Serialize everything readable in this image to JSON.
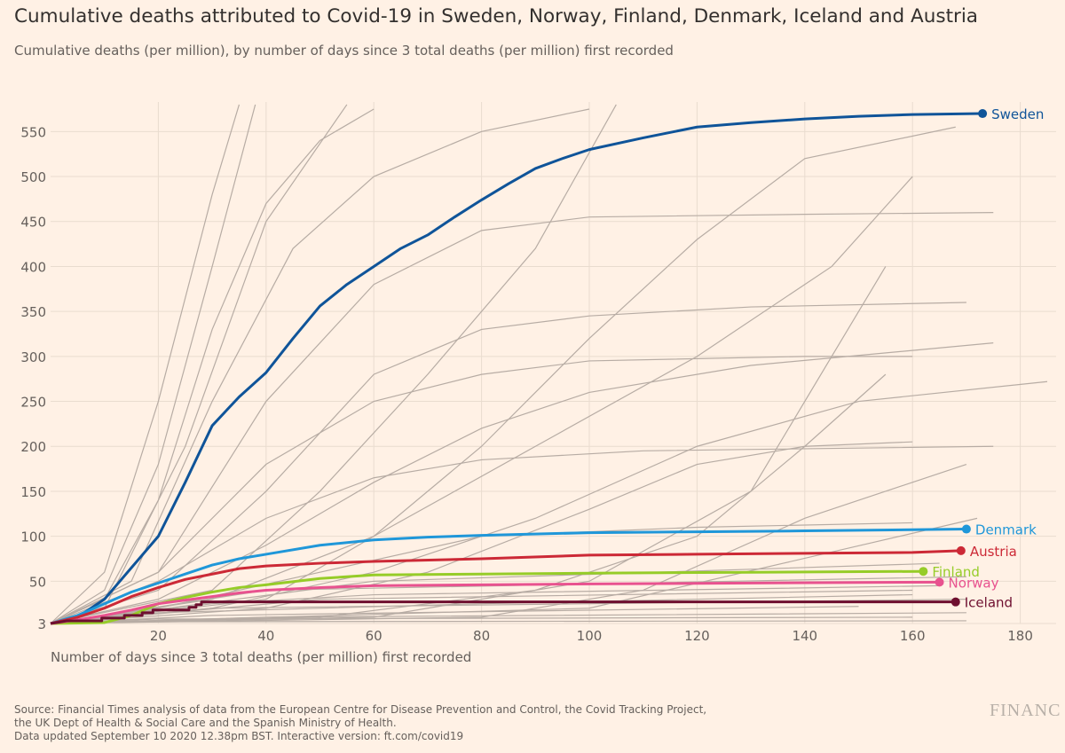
{
  "title": "Cumulative deaths attributed to Covid-19 in Sweden, Norway, Finland, Denmark, Iceland and Austria",
  "subtitle": "Cumulative deaths (per million), by number of days since 3 total deaths (per million) first recorded",
  "source_lines": [
    "Source: Financial Times analysis of data from the European Centre for Disease Prevention and Control, the Covid Tracking Project,",
    "the UK Dept of Health & Social Care and the Spanish Ministry of Health.",
    "Data updated September 10 2020 12.38pm BST. Interactive version: ft.com/covid19"
  ],
  "logo_text": "FINANC",
  "chart_data": {
    "type": "line",
    "title": "Cumulative deaths attributed to Covid-19 in Sweden, Norway, Finland, Denmark, Iceland and Austria",
    "xlabel": "Number of days since 3 total deaths (per million) first recorded",
    "ylabel": "",
    "xlim": [
      0,
      188
    ],
    "ylim": [
      3,
      580
    ],
    "x_ticks": [
      20,
      40,
      60,
      80,
      100,
      120,
      140,
      160,
      180
    ],
    "y_ticks": [
      3,
      50,
      100,
      150,
      200,
      250,
      300,
      350,
      400,
      450,
      500,
      550
    ],
    "grid": true,
    "legend": "end-of-line labels",
    "series": [
      {
        "name": "Sweden",
        "color": "#0f5499",
        "points": [
          [
            0,
            3
          ],
          [
            5,
            10
          ],
          [
            10,
            30
          ],
          [
            15,
            65
          ],
          [
            20,
            100
          ],
          [
            25,
            160
          ],
          [
            30,
            223
          ],
          [
            35,
            255
          ],
          [
            40,
            282
          ],
          [
            45,
            320
          ],
          [
            50,
            356
          ],
          [
            55,
            380
          ],
          [
            60,
            400
          ],
          [
            65,
            420
          ],
          [
            70,
            435
          ],
          [
            75,
            455
          ],
          [
            80,
            474
          ],
          [
            85,
            492
          ],
          [
            90,
            509
          ],
          [
            95,
            520
          ],
          [
            100,
            530
          ],
          [
            110,
            543
          ],
          [
            120,
            555
          ],
          [
            130,
            560
          ],
          [
            140,
            564
          ],
          [
            150,
            567
          ],
          [
            160,
            569
          ],
          [
            173,
            570
          ]
        ]
      },
      {
        "name": "Denmark",
        "color": "#1f97d9",
        "points": [
          [
            0,
            3
          ],
          [
            5,
            12
          ],
          [
            10,
            25
          ],
          [
            15,
            38
          ],
          [
            20,
            48
          ],
          [
            25,
            58
          ],
          [
            30,
            68
          ],
          [
            35,
            75
          ],
          [
            40,
            80
          ],
          [
            50,
            90
          ],
          [
            60,
            96
          ],
          [
            70,
            99
          ],
          [
            80,
            101
          ],
          [
            100,
            104
          ],
          [
            120,
            105
          ],
          [
            140,
            106
          ],
          [
            170,
            108
          ]
        ]
      },
      {
        "name": "Austria",
        "color": "#cc2936",
        "points": [
          [
            0,
            3
          ],
          [
            5,
            10
          ],
          [
            10,
            20
          ],
          [
            15,
            33
          ],
          [
            20,
            43
          ],
          [
            25,
            52
          ],
          [
            30,
            58
          ],
          [
            35,
            64
          ],
          [
            40,
            67
          ],
          [
            50,
            70
          ],
          [
            60,
            72
          ],
          [
            80,
            75
          ],
          [
            100,
            79
          ],
          [
            120,
            80
          ],
          [
            140,
            81
          ],
          [
            160,
            82
          ],
          [
            169,
            84
          ]
        ]
      },
      {
        "name": "Finland",
        "color": "#96cc28",
        "points": [
          [
            0,
            3
          ],
          [
            10,
            4
          ],
          [
            15,
            12
          ],
          [
            20,
            25
          ],
          [
            25,
            32
          ],
          [
            30,
            38
          ],
          [
            35,
            43
          ],
          [
            40,
            46
          ],
          [
            50,
            53
          ],
          [
            60,
            57
          ],
          [
            80,
            58
          ],
          [
            100,
            59
          ],
          [
            130,
            60
          ],
          [
            162,
            61
          ]
        ]
      },
      {
        "name": "Norway",
        "color": "#e8528f",
        "points": [
          [
            0,
            3
          ],
          [
            5,
            7
          ],
          [
            10,
            12
          ],
          [
            15,
            18
          ],
          [
            20,
            25
          ],
          [
            25,
            29
          ],
          [
            30,
            33
          ],
          [
            35,
            37
          ],
          [
            40,
            40
          ],
          [
            50,
            43
          ],
          [
            60,
            45
          ],
          [
            100,
            47
          ],
          [
            130,
            48
          ],
          [
            165,
            49
          ]
        ]
      },
      {
        "name": "Iceland",
        "color": "#6e0f2f",
        "points": [
          [
            0,
            3
          ],
          [
            3,
            6
          ],
          [
            9.5,
            6
          ],
          [
            9.5,
            9
          ],
          [
            13.7,
            9
          ],
          [
            13.7,
            12
          ],
          [
            17,
            12
          ],
          [
            17,
            15
          ],
          [
            19,
            15
          ],
          [
            19,
            18
          ],
          [
            25.7,
            18
          ],
          [
            25.7,
            21
          ],
          [
            27,
            21
          ],
          [
            27,
            24
          ],
          [
            28,
            24
          ],
          [
            28,
            27
          ],
          [
            168,
            27
          ]
        ]
      }
    ],
    "other_series_color": "#b7aca4",
    "other_series": [
      [
        [
          0,
          3
        ],
        [
          10,
          60
        ],
        [
          20,
          250
        ],
        [
          30,
          480
        ],
        [
          35,
          580
        ]
      ],
      [
        [
          0,
          3
        ],
        [
          10,
          40
        ],
        [
          20,
          180
        ],
        [
          30,
          400
        ],
        [
          38,
          580
        ]
      ],
      [
        [
          0,
          3
        ],
        [
          10,
          20
        ],
        [
          25,
          200
        ],
        [
          40,
          450
        ],
        [
          55,
          580
        ]
      ],
      [
        [
          0,
          3
        ],
        [
          10,
          30
        ],
        [
          20,
          140
        ],
        [
          30,
          330
        ],
        [
          40,
          470
        ],
        [
          50,
          540
        ],
        [
          60,
          575
        ]
      ],
      [
        [
          0,
          3
        ],
        [
          15,
          50
        ],
        [
          30,
          250
        ],
        [
          45,
          420
        ],
        [
          60,
          500
        ],
        [
          80,
          550
        ],
        [
          100,
          575
        ]
      ],
      [
        [
          0,
          3
        ],
        [
          20,
          60
        ],
        [
          40,
          250
        ],
        [
          60,
          380
        ],
        [
          80,
          440
        ],
        [
          100,
          455
        ],
        [
          140,
          458
        ],
        [
          175,
          460
        ]
      ],
      [
        [
          0,
          3
        ],
        [
          20,
          40
        ],
        [
          40,
          150
        ],
        [
          60,
          280
        ],
        [
          80,
          330
        ],
        [
          100,
          345
        ],
        [
          130,
          355
        ],
        [
          170,
          360
        ]
      ],
      [
        [
          0,
          3
        ],
        [
          30,
          40
        ],
        [
          50,
          150
        ],
        [
          70,
          280
        ],
        [
          90,
          420
        ],
        [
          105,
          580
        ]
      ],
      [
        [
          0,
          3
        ],
        [
          40,
          30
        ],
        [
          60,
          100
        ],
        [
          80,
          200
        ],
        [
          100,
          320
        ],
        [
          120,
          430
        ],
        [
          140,
          520
        ],
        [
          168,
          555
        ]
      ],
      [
        [
          0,
          3
        ],
        [
          30,
          30
        ],
        [
          60,
          100
        ],
        [
          90,
          200
        ],
        [
          120,
          300
        ],
        [
          145,
          400
        ],
        [
          160,
          500
        ]
      ],
      [
        [
          0,
          3
        ],
        [
          20,
          60
        ],
        [
          40,
          180
        ],
        [
          60,
          250
        ],
        [
          80,
          280
        ],
        [
          100,
          295
        ],
        [
          140,
          300
        ],
        [
          160,
          300
        ]
      ],
      [
        [
          0,
          3
        ],
        [
          20,
          30
        ],
        [
          40,
          90
        ],
        [
          60,
          160
        ],
        [
          80,
          220
        ],
        [
          100,
          260
        ],
        [
          130,
          290
        ],
        [
          175,
          315
        ]
      ],
      [
        [
          0,
          3
        ],
        [
          30,
          20
        ],
        [
          60,
          60
        ],
        [
          90,
          120
        ],
        [
          120,
          200
        ],
        [
          150,
          250
        ],
        [
          185,
          272
        ]
      ],
      [
        [
          0,
          3
        ],
        [
          20,
          50
        ],
        [
          40,
          120
        ],
        [
          60,
          165
        ],
        [
          80,
          185
        ],
        [
          110,
          195
        ],
        [
          175,
          200
        ]
      ],
      [
        [
          0,
          3
        ],
        [
          40,
          20
        ],
        [
          70,
          60
        ],
        [
          100,
          130
        ],
        [
          120,
          180
        ],
        [
          140,
          200
        ],
        [
          160,
          205
        ]
      ],
      [
        [
          0,
          3
        ],
        [
          20,
          20
        ],
        [
          50,
          60
        ],
        [
          80,
          100
        ],
        [
          120,
          110
        ],
        [
          160,
          115
        ]
      ],
      [
        [
          0,
          3
        ],
        [
          50,
          10
        ],
        [
          90,
          40
        ],
        [
          120,
          100
        ],
        [
          140,
          200
        ],
        [
          155,
          280
        ]
      ],
      [
        [
          0,
          3
        ],
        [
          60,
          10
        ],
        [
          100,
          50
        ],
        [
          130,
          150
        ],
        [
          145,
          300
        ],
        [
          155,
          400
        ]
      ],
      [
        [
          0,
          3
        ],
        [
          80,
          10
        ],
        [
          110,
          40
        ],
        [
          140,
          120
        ],
        [
          170,
          180
        ]
      ],
      [
        [
          0,
          3
        ],
        [
          40,
          10
        ],
        [
          170,
          15
        ]
      ],
      [
        [
          0,
          3
        ],
        [
          30,
          20
        ],
        [
          170,
          30
        ]
      ],
      [
        [
          0,
          3
        ],
        [
          50,
          30
        ],
        [
          160,
          40
        ]
      ],
      [
        [
          0,
          3
        ],
        [
          40,
          40
        ],
        [
          170,
          55
        ]
      ],
      [
        [
          0,
          3
        ],
        [
          60,
          50
        ],
        [
          165,
          70
        ]
      ],
      [
        [
          0,
          3
        ],
        [
          30,
          12
        ],
        [
          150,
          22
        ]
      ],
      [
        [
          0,
          3
        ],
        [
          20,
          8
        ],
        [
          160,
          10
        ]
      ],
      [
        [
          0,
          3
        ],
        [
          100,
          20
        ],
        [
          172,
          120
        ]
      ],
      [
        [
          0,
          3
        ],
        [
          20,
          5
        ],
        [
          170,
          6
        ]
      ],
      [
        [
          0,
          3
        ],
        [
          30,
          25
        ],
        [
          60,
          35
        ],
        [
          165,
          45
        ]
      ],
      [
        [
          0,
          3
        ],
        [
          20,
          15
        ],
        [
          80,
          25
        ],
        [
          160,
          35
        ]
      ]
    ]
  }
}
